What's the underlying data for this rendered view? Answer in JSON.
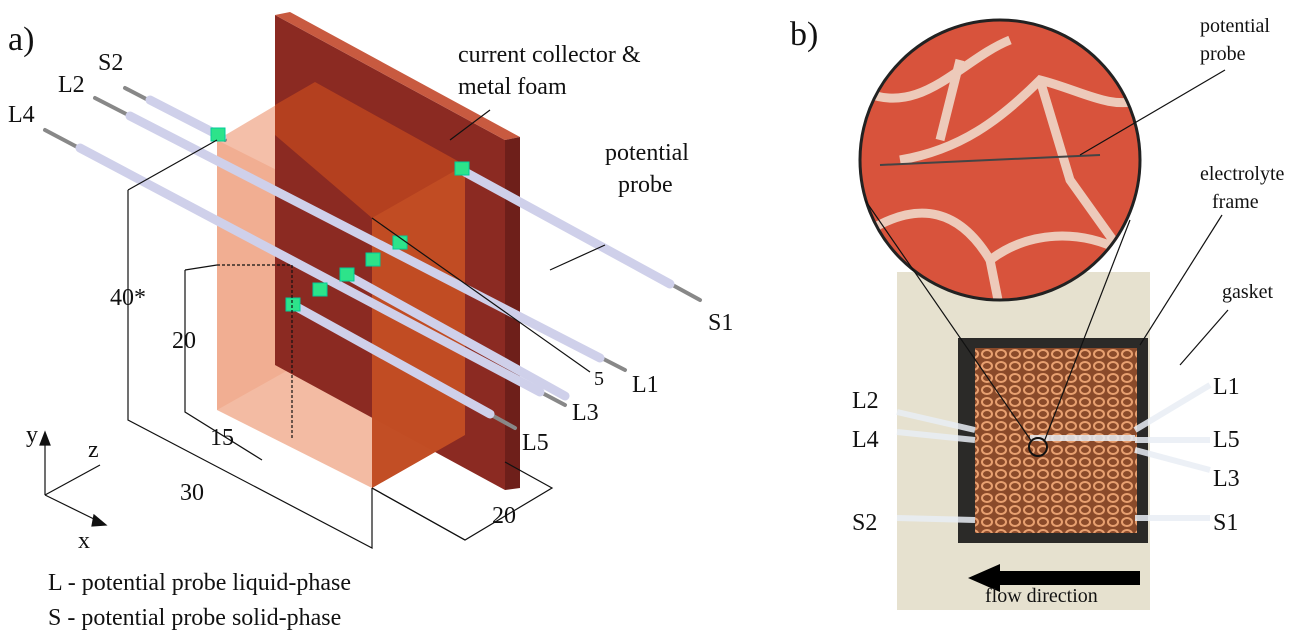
{
  "panel_a": {
    "label": "a)",
    "annotations": {
      "collector": [
        "current collector &",
        "metal foam"
      ],
      "probe": [
        "potential",
        "probe"
      ]
    },
    "probes": {
      "S2": "S2",
      "L2": "L2",
      "L4": "L4",
      "S1": "S1",
      "L1": "L1",
      "L3": "L3",
      "L5": "L5"
    },
    "dimensions": {
      "height": "40*",
      "probe_height": "20",
      "probe_depth": "15",
      "width": "30",
      "depth": "20",
      "spacing": "5"
    },
    "axes": {
      "y": "y",
      "z": "z",
      "x": "x"
    },
    "legend": [
      "L - potential probe liquid-phase",
      "S - potential probe solid-phase"
    ]
  },
  "panel_b": {
    "label": "b)",
    "annotations": {
      "probe": [
        "potential",
        "probe"
      ],
      "frame": [
        "electrolyte",
        "frame"
      ],
      "gasket": "gasket",
      "flow": "flow direction"
    },
    "probes_left": [
      "L2",
      "L4",
      "S2"
    ],
    "probes_right": [
      "L1",
      "L5",
      "L3",
      "S1"
    ]
  }
}
